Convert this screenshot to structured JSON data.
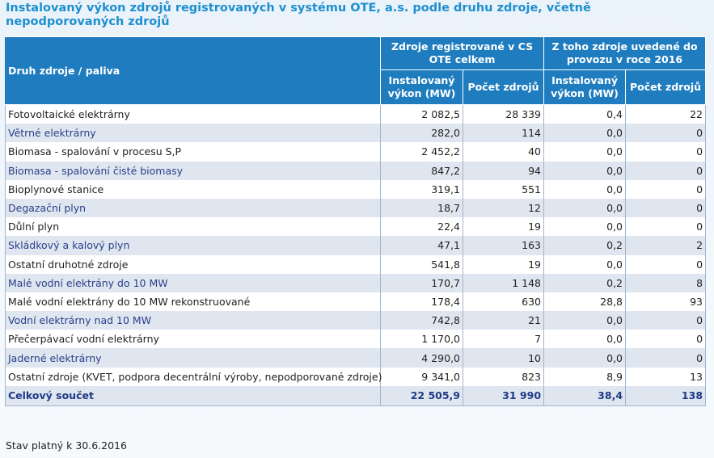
{
  "title": "Instalovaný výkon zdrojů registrovaných v systému OTE, a.s. podle druhu zdroje, včetně nepodporovaných zdrojů",
  "table": {
    "label_header": "Druh zdroje / paliva",
    "group1_header": "Zdroje registrované v CS OTE celkem",
    "group2_header": "Z toho zdroje uvedené do provozu v roce 2016",
    "col_power": "Instalovaný výkon (MW)",
    "col_count": "Počet zdrojů",
    "rows": [
      {
        "label": "Fotovoltaické elektrárny",
        "p1": "2 082,5",
        "c1": "28 339",
        "p2": "0,4",
        "c2": "22"
      },
      {
        "label": "Větrné elektrárny",
        "p1": "282,0",
        "c1": "114",
        "p2": "0,0",
        "c2": "0"
      },
      {
        "label": "Biomasa - spalování v procesu S,P",
        "p1": "2 452,2",
        "c1": "40",
        "p2": "0,0",
        "c2": "0"
      },
      {
        "label": "Biomasa - spalování čisté biomasy",
        "p1": "847,2",
        "c1": "94",
        "p2": "0,0",
        "c2": "0"
      },
      {
        "label": "Bioplynové stanice",
        "p1": "319,1",
        "c1": "551",
        "p2": "0,0",
        "c2": "0"
      },
      {
        "label": "Degazační plyn",
        "p1": "18,7",
        "c1": "12",
        "p2": "0,0",
        "c2": "0"
      },
      {
        "label": "Důlní plyn",
        "p1": "22,4",
        "c1": "19",
        "p2": "0,0",
        "c2": "0"
      },
      {
        "label": "Skládkový a kalový plyn",
        "p1": "47,1",
        "c1": "163",
        "p2": "0,2",
        "c2": "2"
      },
      {
        "label": "Ostatní druhotné zdroje",
        "p1": "541,8",
        "c1": "19",
        "p2": "0,0",
        "c2": "0"
      },
      {
        "label": "Malé vodní elektrány do 10 MW",
        "p1": "170,7",
        "c1": "1 148",
        "p2": "0,2",
        "c2": "8"
      },
      {
        "label": "Malé vodní elektrány do 10 MW rekonstruované",
        "p1": "178,4",
        "c1": "630",
        "p2": "28,8",
        "c2": "93"
      },
      {
        "label": "Vodní elektrárny nad 10 MW",
        "p1": "742,8",
        "c1": "21",
        "p2": "0,0",
        "c2": "0"
      },
      {
        "label": "Přečerpávací vodní elektrárny",
        "p1": "1 170,0",
        "c1": "7",
        "p2": "0,0",
        "c2": "0"
      },
      {
        "label": "Jaderné elektrárny",
        "p1": "4 290,0",
        "c1": "10",
        "p2": "0,0",
        "c2": "0"
      },
      {
        "label": "Ostatní zdroje (KVET, podpora decentrální výroby, nepodporované zdroje)",
        "p1": "9 341,0",
        "c1": "823",
        "p2": "8,9",
        "c2": "13"
      }
    ],
    "total": {
      "label": "Celkový součet",
      "p1": "22 505,9",
      "c1": "31 990",
      "p2": "38,4",
      "c2": "138"
    }
  },
  "footnote": "Stav platný k 30.6.2016",
  "colors": {
    "header_bg": "#1f7dbf",
    "title": "#1e8fcf",
    "stripe": "#dfe6ef",
    "total_text": "#1f3a86"
  }
}
